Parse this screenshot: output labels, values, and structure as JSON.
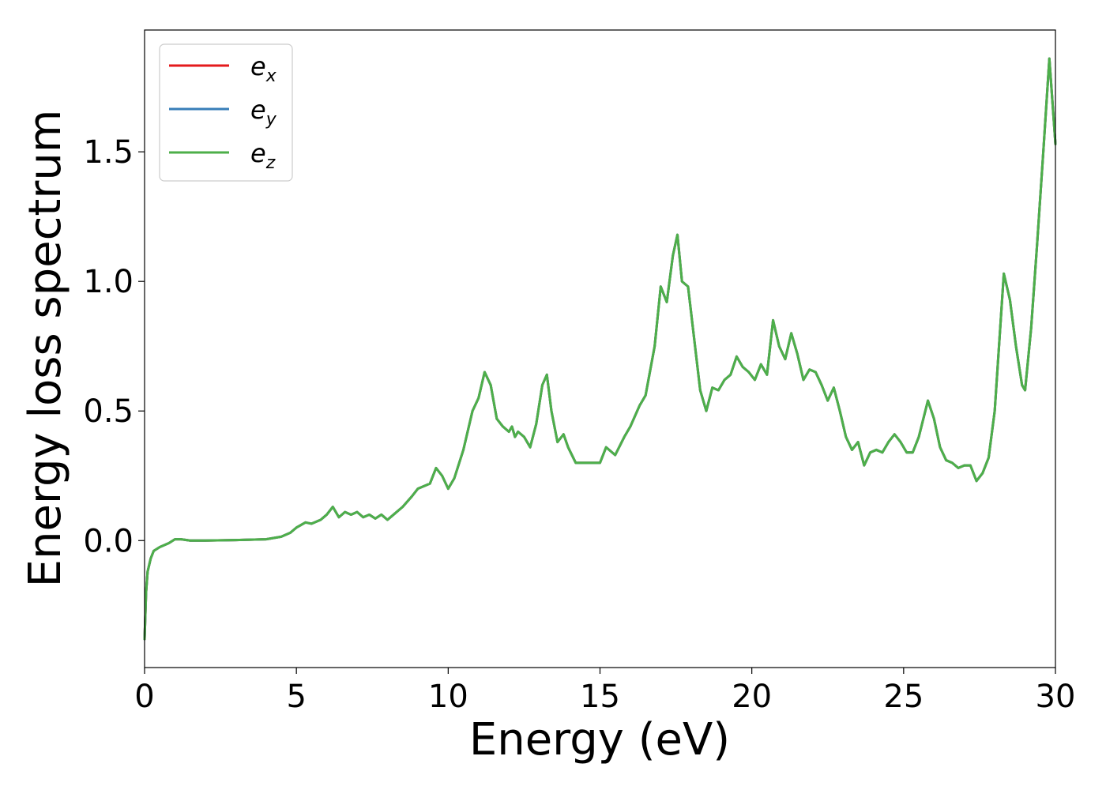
{
  "chart_data": {
    "type": "line",
    "title": "",
    "xlabel": "Energy (eV)",
    "ylabel": "Energy loss spectrum",
    "xlim": [
      0,
      30
    ],
    "ylim": [
      -0.49,
      1.97
    ],
    "xticks": [
      0,
      5,
      10,
      15,
      20,
      25,
      30
    ],
    "xtick_labels": [
      "0",
      "5",
      "10",
      "15",
      "20",
      "25",
      "30"
    ],
    "yticks": [
      0.0,
      0.5,
      1.0,
      1.5
    ],
    "ytick_labels": [
      "0.0",
      "0.5",
      "1.0",
      "1.5"
    ],
    "grid": false,
    "legend_position": "top-left",
    "x": [
      0.0,
      0.05,
      0.1,
      0.2,
      0.3,
      0.5,
      0.8,
      1.0,
      1.2,
      1.5,
      2.0,
      3.0,
      4.0,
      4.5,
      4.8,
      5.0,
      5.3,
      5.5,
      5.8,
      6.0,
      6.2,
      6.4,
      6.6,
      6.8,
      7.0,
      7.2,
      7.4,
      7.6,
      7.8,
      8.0,
      8.2,
      8.5,
      8.8,
      9.0,
      9.2,
      9.4,
      9.6,
      9.8,
      10.0,
      10.2,
      10.5,
      10.8,
      11.0,
      11.2,
      11.4,
      11.6,
      11.8,
      12.0,
      12.1,
      12.2,
      12.3,
      12.5,
      12.7,
      12.9,
      13.1,
      13.25,
      13.4,
      13.6,
      13.8,
      13.95,
      14.2,
      14.5,
      14.8,
      15.0,
      15.2,
      15.5,
      15.8,
      16.0,
      16.3,
      16.5,
      16.8,
      17.0,
      17.2,
      17.4,
      17.55,
      17.7,
      17.9,
      18.1,
      18.3,
      18.5,
      18.7,
      18.9,
      19.1,
      19.3,
      19.5,
      19.7,
      19.9,
      20.1,
      20.3,
      20.5,
      20.7,
      20.9,
      21.1,
      21.3,
      21.5,
      21.7,
      21.9,
      22.1,
      22.3,
      22.5,
      22.7,
      22.9,
      23.1,
      23.3,
      23.5,
      23.7,
      23.9,
      24.1,
      24.3,
      24.5,
      24.7,
      24.9,
      25.1,
      25.3,
      25.5,
      25.8,
      26.0,
      26.2,
      26.4,
      26.6,
      26.8,
      27.0,
      27.2,
      27.4,
      27.6,
      27.8,
      28.0,
      28.3,
      28.5,
      28.7,
      28.9,
      29.0,
      29.2,
      29.4,
      29.6,
      29.8,
      30.0
    ],
    "y": [
      -0.38,
      -0.2,
      -0.12,
      -0.07,
      -0.04,
      -0.025,
      -0.01,
      0.005,
      0.005,
      0.0,
      0.0,
      0.002,
      0.005,
      0.015,
      0.03,
      0.05,
      0.07,
      0.065,
      0.08,
      0.1,
      0.13,
      0.09,
      0.11,
      0.1,
      0.11,
      0.09,
      0.1,
      0.085,
      0.1,
      0.08,
      0.1,
      0.13,
      0.17,
      0.2,
      0.21,
      0.22,
      0.28,
      0.25,
      0.2,
      0.24,
      0.35,
      0.5,
      0.55,
      0.65,
      0.6,
      0.47,
      0.44,
      0.42,
      0.44,
      0.4,
      0.42,
      0.4,
      0.36,
      0.45,
      0.6,
      0.64,
      0.5,
      0.38,
      0.41,
      0.36,
      0.3,
      0.3,
      0.3,
      0.3,
      0.36,
      0.33,
      0.4,
      0.44,
      0.52,
      0.56,
      0.75,
      0.98,
      0.92,
      1.1,
      1.18,
      1.0,
      0.98,
      0.78,
      0.58,
      0.5,
      0.59,
      0.58,
      0.62,
      0.64,
      0.71,
      0.67,
      0.65,
      0.62,
      0.68,
      0.64,
      0.85,
      0.75,
      0.7,
      0.8,
      0.72,
      0.62,
      0.66,
      0.65,
      0.6,
      0.54,
      0.59,
      0.5,
      0.4,
      0.35,
      0.38,
      0.29,
      0.34,
      0.35,
      0.34,
      0.38,
      0.41,
      0.38,
      0.34,
      0.34,
      0.4,
      0.54,
      0.47,
      0.36,
      0.31,
      0.3,
      0.28,
      0.29,
      0.29,
      0.23,
      0.26,
      0.32,
      0.5,
      1.03,
      0.93,
      0.75,
      0.6,
      0.58,
      0.82,
      1.15,
      1.5,
      1.86,
      1.53
    ],
    "series": [
      {
        "name": "e_x",
        "label_base": "e",
        "label_sub": "x",
        "color": "#e41a1c",
        "data_ref": "x/y"
      },
      {
        "name": "e_y",
        "label_base": "e",
        "label_sub": "y",
        "color": "#377eb8",
        "data_ref": "x/y"
      },
      {
        "name": "e_z",
        "label_base": "e",
        "label_sub": "z",
        "color": "#4daf4a",
        "data_ref": "x/y"
      }
    ]
  }
}
